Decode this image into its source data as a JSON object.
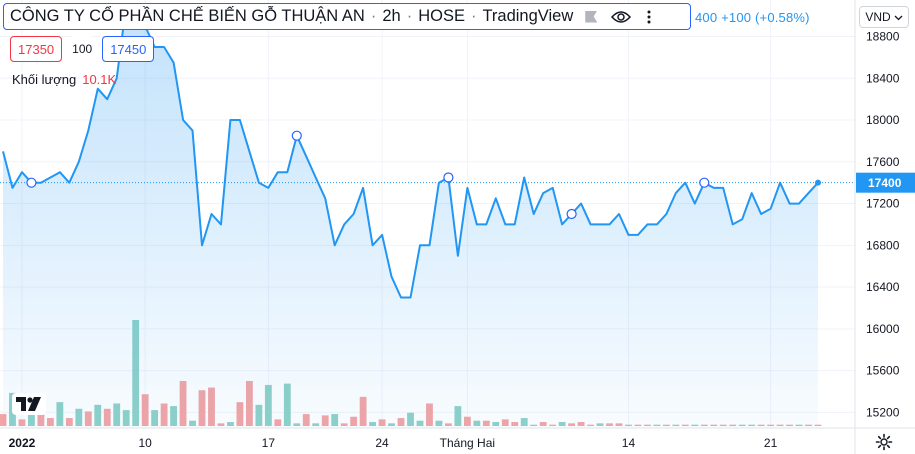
{
  "header": {
    "company": "CÔNG TY CỔ PHẦN CHẾ BIẾN GỖ THUẬN AN",
    "interval": "2h",
    "exchange": "HOSE",
    "source": "TradingView",
    "change": "400 +100 (+0.58%)"
  },
  "prices": {
    "bid": "17350",
    "spread": "100",
    "ask": "17450"
  },
  "volume_legend": {
    "label": "Khối lượng",
    "value": "10.1K"
  },
  "currency": "VND",
  "icons": {
    "eye": "eye-icon",
    "flag": "flag-icon",
    "logo": "tradingview-logo-icon",
    "settings": "gear-icon",
    "dropdown": "chevron-down-icon"
  },
  "colors": {
    "line": "#2196f3",
    "up_volume": "#8fd1c8",
    "down_volume": "#f3a5a5",
    "last_badge": "#2196f3"
  },
  "chart_data": {
    "type": "area",
    "ylim": [
      15050,
      19150
    ],
    "yticks": [
      15200,
      15600,
      16000,
      16400,
      16800,
      17200,
      17600,
      18000,
      18400,
      18800
    ],
    "xticks": [
      {
        "label": "2022",
        "i": 2,
        "bold": true
      },
      {
        "label": "10",
        "i": 15
      },
      {
        "label": "17",
        "i": 28
      },
      {
        "label": "24",
        "i": 40
      },
      {
        "label": "Tháng Hai",
        "i": 49
      },
      {
        "label": "14",
        "i": 66
      },
      {
        "label": "21",
        "i": 81
      }
    ],
    "last_price": "17400",
    "prices": [
      17700,
      17350,
      17500,
      17400,
      17400,
      17450,
      17500,
      17400,
      17600,
      17900,
      18300,
      18200,
      18400,
      19100,
      19100,
      18900,
      18700,
      18700,
      18550,
      18000,
      17900,
      16800,
      17100,
      17000,
      18000,
      18000,
      17700,
      17400,
      17350,
      17500,
      17500,
      17850,
      17650,
      17450,
      17250,
      16800,
      17000,
      17100,
      17350,
      16800,
      16900,
      16500,
      16300,
      16300,
      16800,
      16800,
      17400,
      17450,
      16700,
      17350,
      17000,
      17000,
      17250,
      17000,
      17000,
      17450,
      17100,
      17300,
      17350,
      17000,
      17100,
      17200,
      17000,
      17000,
      17000,
      17100,
      16900,
      16900,
      17000,
      17000,
      17100,
      17300,
      17400,
      17200,
      17400,
      17350,
      17350,
      17000,
      17050,
      17300,
      17100,
      17150,
      17400,
      17200,
      17200,
      17300,
      17400
    ],
    "markers": [
      3,
      31,
      60,
      47,
      74,
      89
    ],
    "volume": [
      9,
      25,
      5,
      9,
      10,
      6,
      18,
      6,
      13,
      11,
      16,
      13,
      17,
      12,
      80,
      24,
      12,
      17,
      15,
      34,
      4,
      27,
      29,
      2,
      3,
      18,
      34,
      16,
      31,
      5,
      32,
      2,
      9,
      2,
      8,
      9,
      2,
      7,
      22,
      3,
      5,
      2,
      6,
      10,
      4,
      17,
      4,
      2,
      15,
      7,
      4,
      4,
      3,
      5,
      3,
      6,
      1,
      3,
      1,
      3,
      2,
      3,
      1,
      2,
      2,
      2,
      1,
      1,
      1,
      1,
      1,
      1,
      1,
      1,
      1,
      1,
      1,
      1,
      1,
      1,
      1,
      1,
      1,
      1,
      1,
      1,
      1
    ],
    "volume_up": [
      false,
      true,
      false,
      true,
      false,
      false,
      true,
      false,
      true,
      false,
      true,
      false,
      true,
      true,
      true,
      false,
      true,
      false,
      true,
      false,
      true,
      false,
      false,
      false,
      true,
      false,
      false,
      true,
      true,
      false,
      true,
      true,
      false,
      true,
      false,
      true,
      false,
      false,
      false,
      true,
      false,
      true,
      false,
      true,
      true,
      false,
      true,
      false,
      true,
      false,
      true,
      false,
      true,
      false,
      false,
      true,
      true,
      false,
      false,
      true,
      false,
      false,
      false,
      true,
      false,
      false,
      true,
      false,
      false,
      true,
      false,
      true,
      false,
      true,
      false,
      false,
      false,
      false,
      true,
      true,
      false,
      false,
      false,
      false,
      true,
      false,
      false
    ]
  }
}
